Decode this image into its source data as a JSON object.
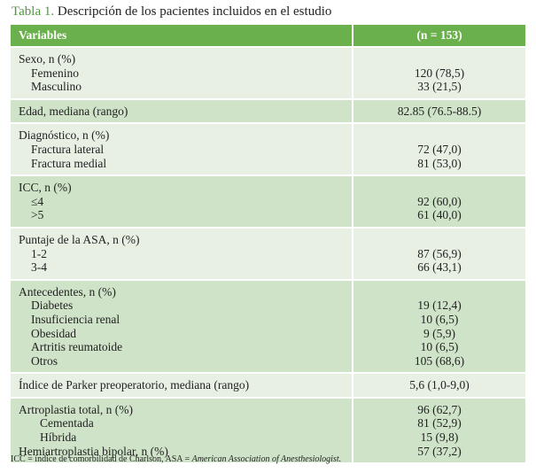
{
  "title": {
    "number": "Tabla 1.",
    "text": " Descripción de los pacientes incluidos en el estudio"
  },
  "header": {
    "col1": "Variables",
    "col2": "(n = 153)"
  },
  "groups": [
    {
      "shade": "light",
      "lines": [
        {
          "label": "Sexo, n (%)",
          "value": "",
          "indent": 0
        },
        {
          "label": "Femenino",
          "value": "120 (78,5)",
          "indent": 1
        },
        {
          "label": "Masculino",
          "value": "33 (21,5)",
          "indent": 1
        }
      ]
    },
    {
      "shade": "med",
      "lines": [
        {
          "label": "Edad, mediana (rango)",
          "value": "82.85 (76.5-88.5)",
          "indent": 0
        }
      ]
    },
    {
      "shade": "light",
      "lines": [
        {
          "label": "Diagnóstico, n (%)",
          "value": "",
          "indent": 0
        },
        {
          "label": "Fractura lateral",
          "value": "72 (47,0)",
          "indent": 1
        },
        {
          "label": "Fractura medial",
          "value": "81 (53,0)",
          "indent": 1
        }
      ]
    },
    {
      "shade": "med",
      "lines": [
        {
          "label": "ICC, n (%)",
          "value": "",
          "indent": 0
        },
        {
          "label": "≤4",
          "value": "92 (60,0)",
          "indent": 1
        },
        {
          "label": ">5",
          "value": "61 (40,0)",
          "indent": 1
        }
      ]
    },
    {
      "shade": "light",
      "lines": [
        {
          "label": "Puntaje de la ASA, n (%)",
          "value": "",
          "indent": 0
        },
        {
          "label": "1-2",
          "value": "87 (56,9)",
          "indent": 1
        },
        {
          "label": "3-4",
          "value": "66 (43,1)",
          "indent": 1
        }
      ]
    },
    {
      "shade": "med",
      "lines": [
        {
          "label": "Antecedentes, n (%)",
          "value": "",
          "indent": 0
        },
        {
          "label": "Diabetes",
          "value": "19 (12,4)",
          "indent": 1
        },
        {
          "label": "Insuficiencia renal",
          "value": "10 (6,5)",
          "indent": 1
        },
        {
          "label": "Obesidad",
          "value": "9 (5,9)",
          "indent": 1
        },
        {
          "label": "Artritis reumatoide",
          "value": "10 (6,5)",
          "indent": 1
        },
        {
          "label": "Otros",
          "value": "105 (68,6)",
          "indent": 1
        }
      ]
    },
    {
      "shade": "light",
      "lines": [
        {
          "label": "Índice de Parker preoperatorio, mediana (rango)",
          "value": "5,6 (1,0-9,0)",
          "indent": 0
        }
      ]
    },
    {
      "shade": "med",
      "lines": [
        {
          "label": "Artroplastia total, n (%)",
          "value": "96 (62,7)",
          "indent": 0
        },
        {
          "label": "Cementada",
          "value": "81 (52,9)",
          "indent": 2
        },
        {
          "label": "Híbrida",
          "value": "15 (9,8)",
          "indent": 2
        },
        {
          "label": "Hemiartroplastia bipolar, n (%)",
          "value": "57 (37,2)",
          "indent": 0
        }
      ]
    }
  ],
  "footnote": {
    "plain": "ICC = índice de comorbilidad de Charlson, ASA = ",
    "italic": "American Association of Anesthesiologist."
  },
  "colors": {
    "header": "#6ab04c",
    "light": "#e8f0e4",
    "medium": "#cfe3c8",
    "title_number": "#4d9a3a"
  }
}
